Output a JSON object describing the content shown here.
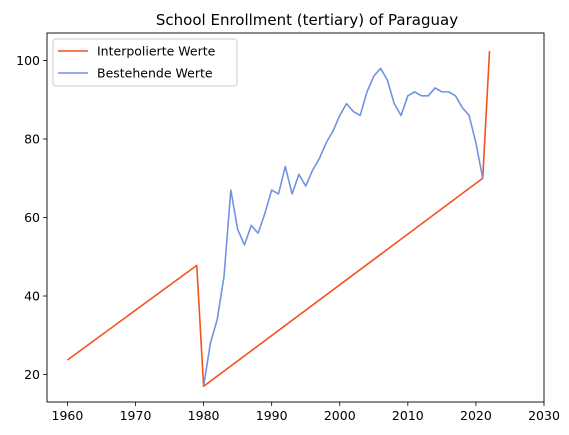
{
  "chart_data": {
    "type": "line",
    "title": "School Enrollment (tertiary) of Paraguay",
    "xlabel": "",
    "ylabel": "",
    "xlim": [
      1957,
      2030
    ],
    "ylim": [
      13,
      107
    ],
    "xticks": [
      1960,
      1970,
      1980,
      1990,
      2000,
      2010,
      2020,
      2030
    ],
    "yticks": [
      20,
      40,
      60,
      80,
      100
    ],
    "grid": false,
    "legend_position": "top-left",
    "series": [
      {
        "name": "Interpolierte Werte",
        "color": "#f4511e",
        "points": [
          [
            1960,
            23.7
          ],
          [
            1979,
            47.8
          ],
          [
            1980,
            17.0
          ],
          [
            2021,
            70.0
          ],
          [
            2022,
            102.4
          ]
        ]
      },
      {
        "name": "Bestehende Werte",
        "color": "#7193e2",
        "points": [
          [
            1980,
            17.0
          ],
          [
            1981,
            28.0
          ],
          [
            1982,
            34.0
          ],
          [
            1983,
            45.0
          ],
          [
            1984,
            67.0
          ],
          [
            1985,
            57.0
          ],
          [
            1986,
            53.0
          ],
          [
            1987,
            58.0
          ],
          [
            1988,
            56.0
          ],
          [
            1989,
            61.0
          ],
          [
            1990,
            67.0
          ],
          [
            1991,
            66.0
          ],
          [
            1992,
            73.0
          ],
          [
            1993,
            66.0
          ],
          [
            1994,
            71.0
          ],
          [
            1995,
            68.0
          ],
          [
            1996,
            72.0
          ],
          [
            1997,
            75.0
          ],
          [
            1998,
            79.0
          ],
          [
            1999,
            82.0
          ],
          [
            2000,
            86.0
          ],
          [
            2001,
            89.0
          ],
          [
            2002,
            87.0
          ],
          [
            2003,
            86.0
          ],
          [
            2004,
            92.0
          ],
          [
            2005,
            96.0
          ],
          [
            2006,
            98.0
          ],
          [
            2007,
            95.0
          ],
          [
            2008,
            89.0
          ],
          [
            2009,
            86.0
          ],
          [
            2010,
            91.0
          ],
          [
            2011,
            92.0
          ],
          [
            2012,
            91.0
          ],
          [
            2013,
            91.0
          ],
          [
            2014,
            93.0
          ],
          [
            2015,
            92.0
          ],
          [
            2016,
            92.0
          ],
          [
            2017,
            91.0
          ],
          [
            2018,
            88.0
          ],
          [
            2019,
            86.0
          ],
          [
            2020,
            79.0
          ],
          [
            2021,
            70.0
          ]
        ]
      }
    ]
  }
}
